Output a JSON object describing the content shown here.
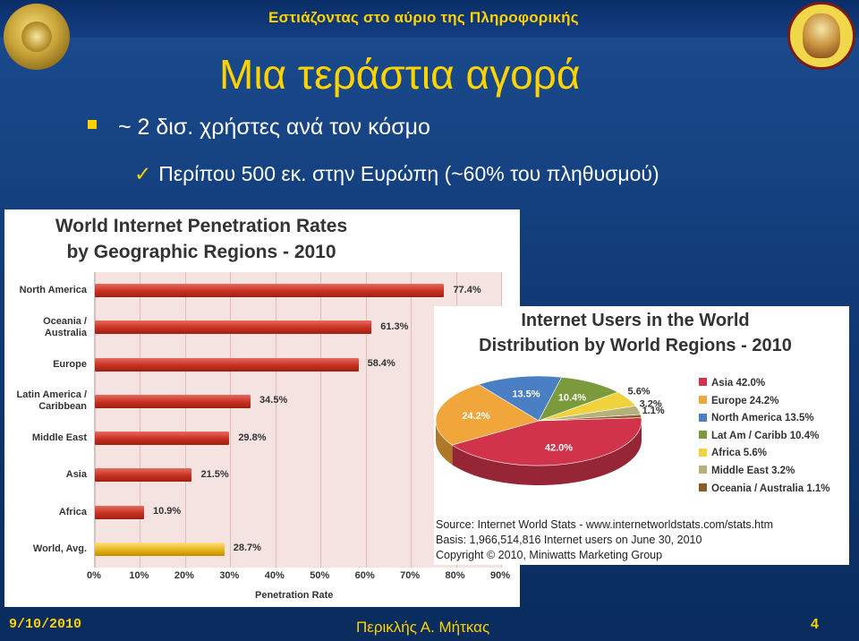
{
  "header": {
    "text": "Εστιάζοντας στο αύριο της Πληροφορικής"
  },
  "slide": {
    "title": "Μια τεράστια αγορά",
    "bullets": [
      {
        "text": "~ 2 δισ. χρήστες ανά τον κόσμο"
      },
      {
        "text": "Περίπου 500 εκ. στην Ευρώπη (~60% του πληθυσμού)"
      }
    ]
  },
  "colors": {
    "accent": "#ffd200",
    "background": "#143f7c",
    "bar_red": "#c63020",
    "bar_gold": "#e6b51b"
  },
  "chart_data": [
    {
      "type": "bar",
      "orientation": "horizontal",
      "title_line1": "World Internet Penetration Rates",
      "title_line2": "by Geographic Regions - 2010",
      "xlabel": "Penetration Rate",
      "xlim": [
        0,
        90
      ],
      "xticks": [
        "0%",
        "10%",
        "20%",
        "30%",
        "40%",
        "50%",
        "60%",
        "70%",
        "80%",
        "90%"
      ],
      "categories": [
        "North America",
        "Oceania / Australia",
        "Europe",
        "Latin America / Caribbean",
        "Middle East",
        "Asia",
        "Africa",
        "World, Avg."
      ],
      "values": [
        77.4,
        61.3,
        58.4,
        34.5,
        29.8,
        21.5,
        10.9,
        28.7
      ],
      "value_labels": [
        "77.4%",
        "61.3%",
        "58.4%",
        "34.5%",
        "29.8%",
        "21.5%",
        "10.9%",
        "28.7%"
      ],
      "label_lines": [
        [
          "North America"
        ],
        [
          "Oceania /",
          "Australia"
        ],
        [
          "Europe"
        ],
        [
          "Latin America /",
          "Caribbean"
        ],
        [
          "Middle East"
        ],
        [
          "Asia"
        ],
        [
          "Africa"
        ],
        [
          "World, Avg."
        ]
      ],
      "highlight_index": 7
    },
    {
      "type": "pie",
      "title_line1": "Internet Users in the World",
      "title_line2": "Distribution by World Regions - 2010",
      "slices": [
        {
          "name": "Asia",
          "value": 42.0,
          "label": "42.0%",
          "color": "#d1344a"
        },
        {
          "name": "Europe",
          "value": 24.2,
          "label": "24.2%",
          "color": "#f0a63a"
        },
        {
          "name": "North America",
          "value": 13.5,
          "label": "13.5%",
          "color": "#4a7fc4"
        },
        {
          "name": "Lat Am / Caribb",
          "value": 10.4,
          "label": "10.4%",
          "color": "#7a9a3c"
        },
        {
          "name": "Africa",
          "value": 5.6,
          "label": "5.6%",
          "color": "#efd23c"
        },
        {
          "name": "Middle East",
          "value": 3.2,
          "label": "3.2%",
          "color": "#b6b07a"
        },
        {
          "name": "Oceania / Australia",
          "value": 1.1,
          "label": "1.1%",
          "color": "#8a5a2a"
        }
      ],
      "legend": [
        {
          "text": "Asia  42.0%",
          "color": "#d1344a"
        },
        {
          "text": "Europe  24.2%",
          "color": "#f0a63a"
        },
        {
          "text": "North America  13.5%",
          "color": "#4a7fc4"
        },
        {
          "text": "Lat Am / Caribb  10.4%",
          "color": "#7a9a3c"
        },
        {
          "text": "Africa  5.6%",
          "color": "#efd23c"
        },
        {
          "text": "Middle East  3.2%",
          "color": "#b6b07a"
        },
        {
          "text": "Oceania / Australia  1.1%",
          "color": "#8a5a2a"
        }
      ],
      "source_lines": [
        "Source: Internet World Stats - www.internetworldstats.com/stats.htm",
        "Basis: 1,966,514,816 Internet users on June 30, 2010",
        "Copyright © 2010, Miniwatts Marketing Group"
      ]
    }
  ],
  "footer": {
    "date": "9/10/2010",
    "author": "Περικλής Α. Μήτκας",
    "page": "4"
  }
}
